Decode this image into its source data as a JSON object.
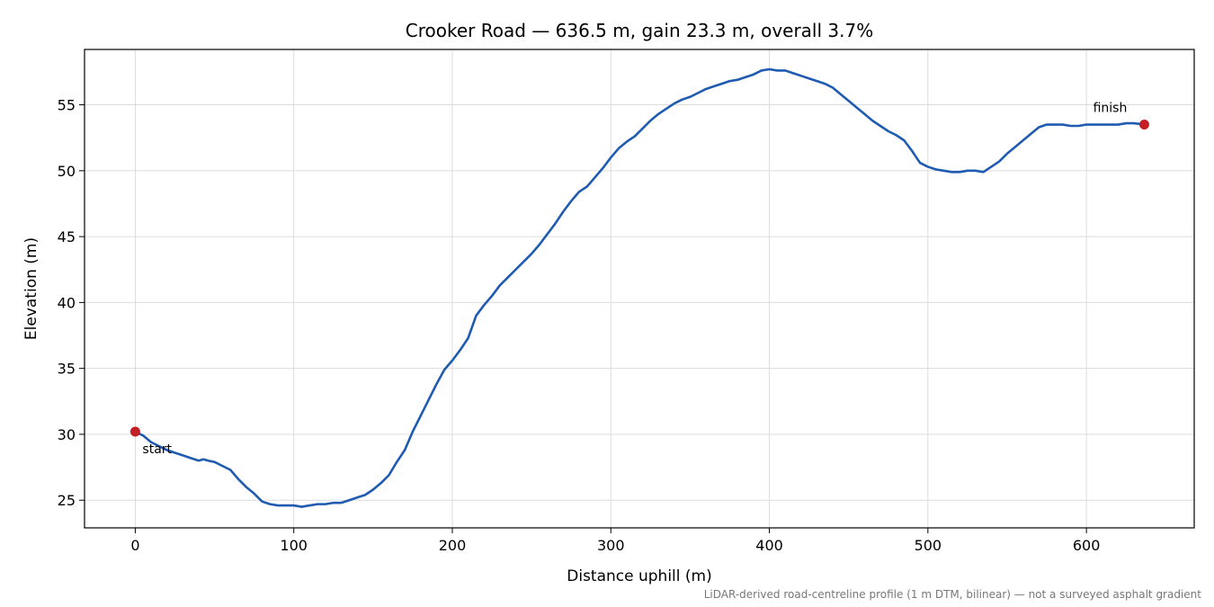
{
  "chart_data": {
    "type": "line",
    "title": "Crooker Road — 636.5 m, gain 23.3 m, overall 3.7%",
    "xlabel": "Distance uphill (m)",
    "ylabel": "Elevation (m)",
    "xlim": [
      -32,
      668
    ],
    "ylim": [
      22.9,
      59.2
    ],
    "xticks": [
      0,
      100,
      200,
      300,
      400,
      500,
      600
    ],
    "yticks": [
      25,
      30,
      35,
      40,
      45,
      50,
      55
    ],
    "grid": true,
    "series": [
      {
        "color": "#1f5bb0",
        "x": [
          0,
          5,
          10,
          15,
          20,
          25,
          30,
          35,
          40,
          43,
          46,
          50,
          55,
          60,
          65,
          70,
          75,
          80,
          85,
          90,
          95,
          100,
          105,
          110,
          115,
          120,
          125,
          130,
          135,
          140,
          145,
          150,
          155,
          160,
          165,
          170,
          175,
          180,
          185,
          190,
          195,
          200,
          205,
          210,
          215,
          220,
          225,
          230,
          235,
          240,
          245,
          250,
          255,
          260,
          265,
          270,
          275,
          280,
          285,
          290,
          295,
          300,
          305,
          310,
          315,
          320,
          325,
          330,
          335,
          340,
          345,
          350,
          355,
          360,
          365,
          370,
          375,
          380,
          385,
          390,
          395,
          400,
          405,
          410,
          415,
          420,
          425,
          430,
          435,
          440,
          445,
          450,
          455,
          460,
          465,
          470,
          475,
          480,
          485,
          490,
          495,
          500,
          505,
          510,
          515,
          520,
          525,
          530,
          535,
          540,
          545,
          550,
          555,
          560,
          565,
          570,
          575,
          580,
          585,
          590,
          595,
          600,
          605,
          610,
          615,
          620,
          625,
          630,
          636.5
        ],
        "values": [
          30.2,
          29.9,
          29.4,
          29.1,
          28.8,
          28.6,
          28.4,
          28.2,
          28.0,
          28.1,
          28.0,
          27.9,
          27.6,
          27.3,
          26.6,
          26.0,
          25.5,
          24.9,
          24.7,
          24.6,
          24.6,
          24.6,
          24.5,
          24.6,
          24.7,
          24.7,
          24.8,
          24.8,
          25.0,
          25.2,
          25.4,
          25.8,
          26.3,
          26.9,
          27.9,
          28.8,
          30.2,
          31.4,
          32.6,
          33.8,
          34.9,
          35.6,
          36.4,
          37.3,
          39.0,
          39.8,
          40.5,
          41.3,
          41.9,
          42.5,
          43.1,
          43.7,
          44.4,
          45.2,
          46.0,
          46.9,
          47.7,
          48.4,
          48.8,
          49.5,
          50.2,
          51.0,
          51.7,
          52.2,
          52.6,
          53.2,
          53.8,
          54.3,
          54.7,
          55.1,
          55.4,
          55.6,
          55.9,
          56.2,
          56.4,
          56.6,
          56.8,
          56.9,
          57.1,
          57.3,
          57.6,
          57.7,
          57.6,
          57.6,
          57.4,
          57.2,
          57.0,
          56.8,
          56.6,
          56.3,
          55.8,
          55.3,
          54.8,
          54.3,
          53.8,
          53.4,
          53.0,
          52.7,
          52.3,
          51.5,
          50.6,
          50.3,
          50.1,
          50.0,
          49.9,
          49.9,
          50.0,
          50.0,
          49.9,
          50.3,
          50.7,
          51.3,
          51.8,
          52.3,
          52.8,
          53.3,
          53.5,
          53.5,
          53.5,
          53.4,
          53.4,
          53.5,
          53.5,
          53.5,
          53.5,
          53.5,
          53.6,
          53.6,
          53.5
        ]
      }
    ],
    "markers": [
      {
        "label": "start",
        "x": 0,
        "y": 30.2,
        "color": "#c41e26"
      },
      {
        "label": "finish",
        "x": 636.5,
        "y": 53.5,
        "color": "#c41e26"
      }
    ],
    "footnote": "LiDAR-derived road-centreline profile (1 m DTM, bilinear) — not a surveyed asphalt gradient"
  }
}
